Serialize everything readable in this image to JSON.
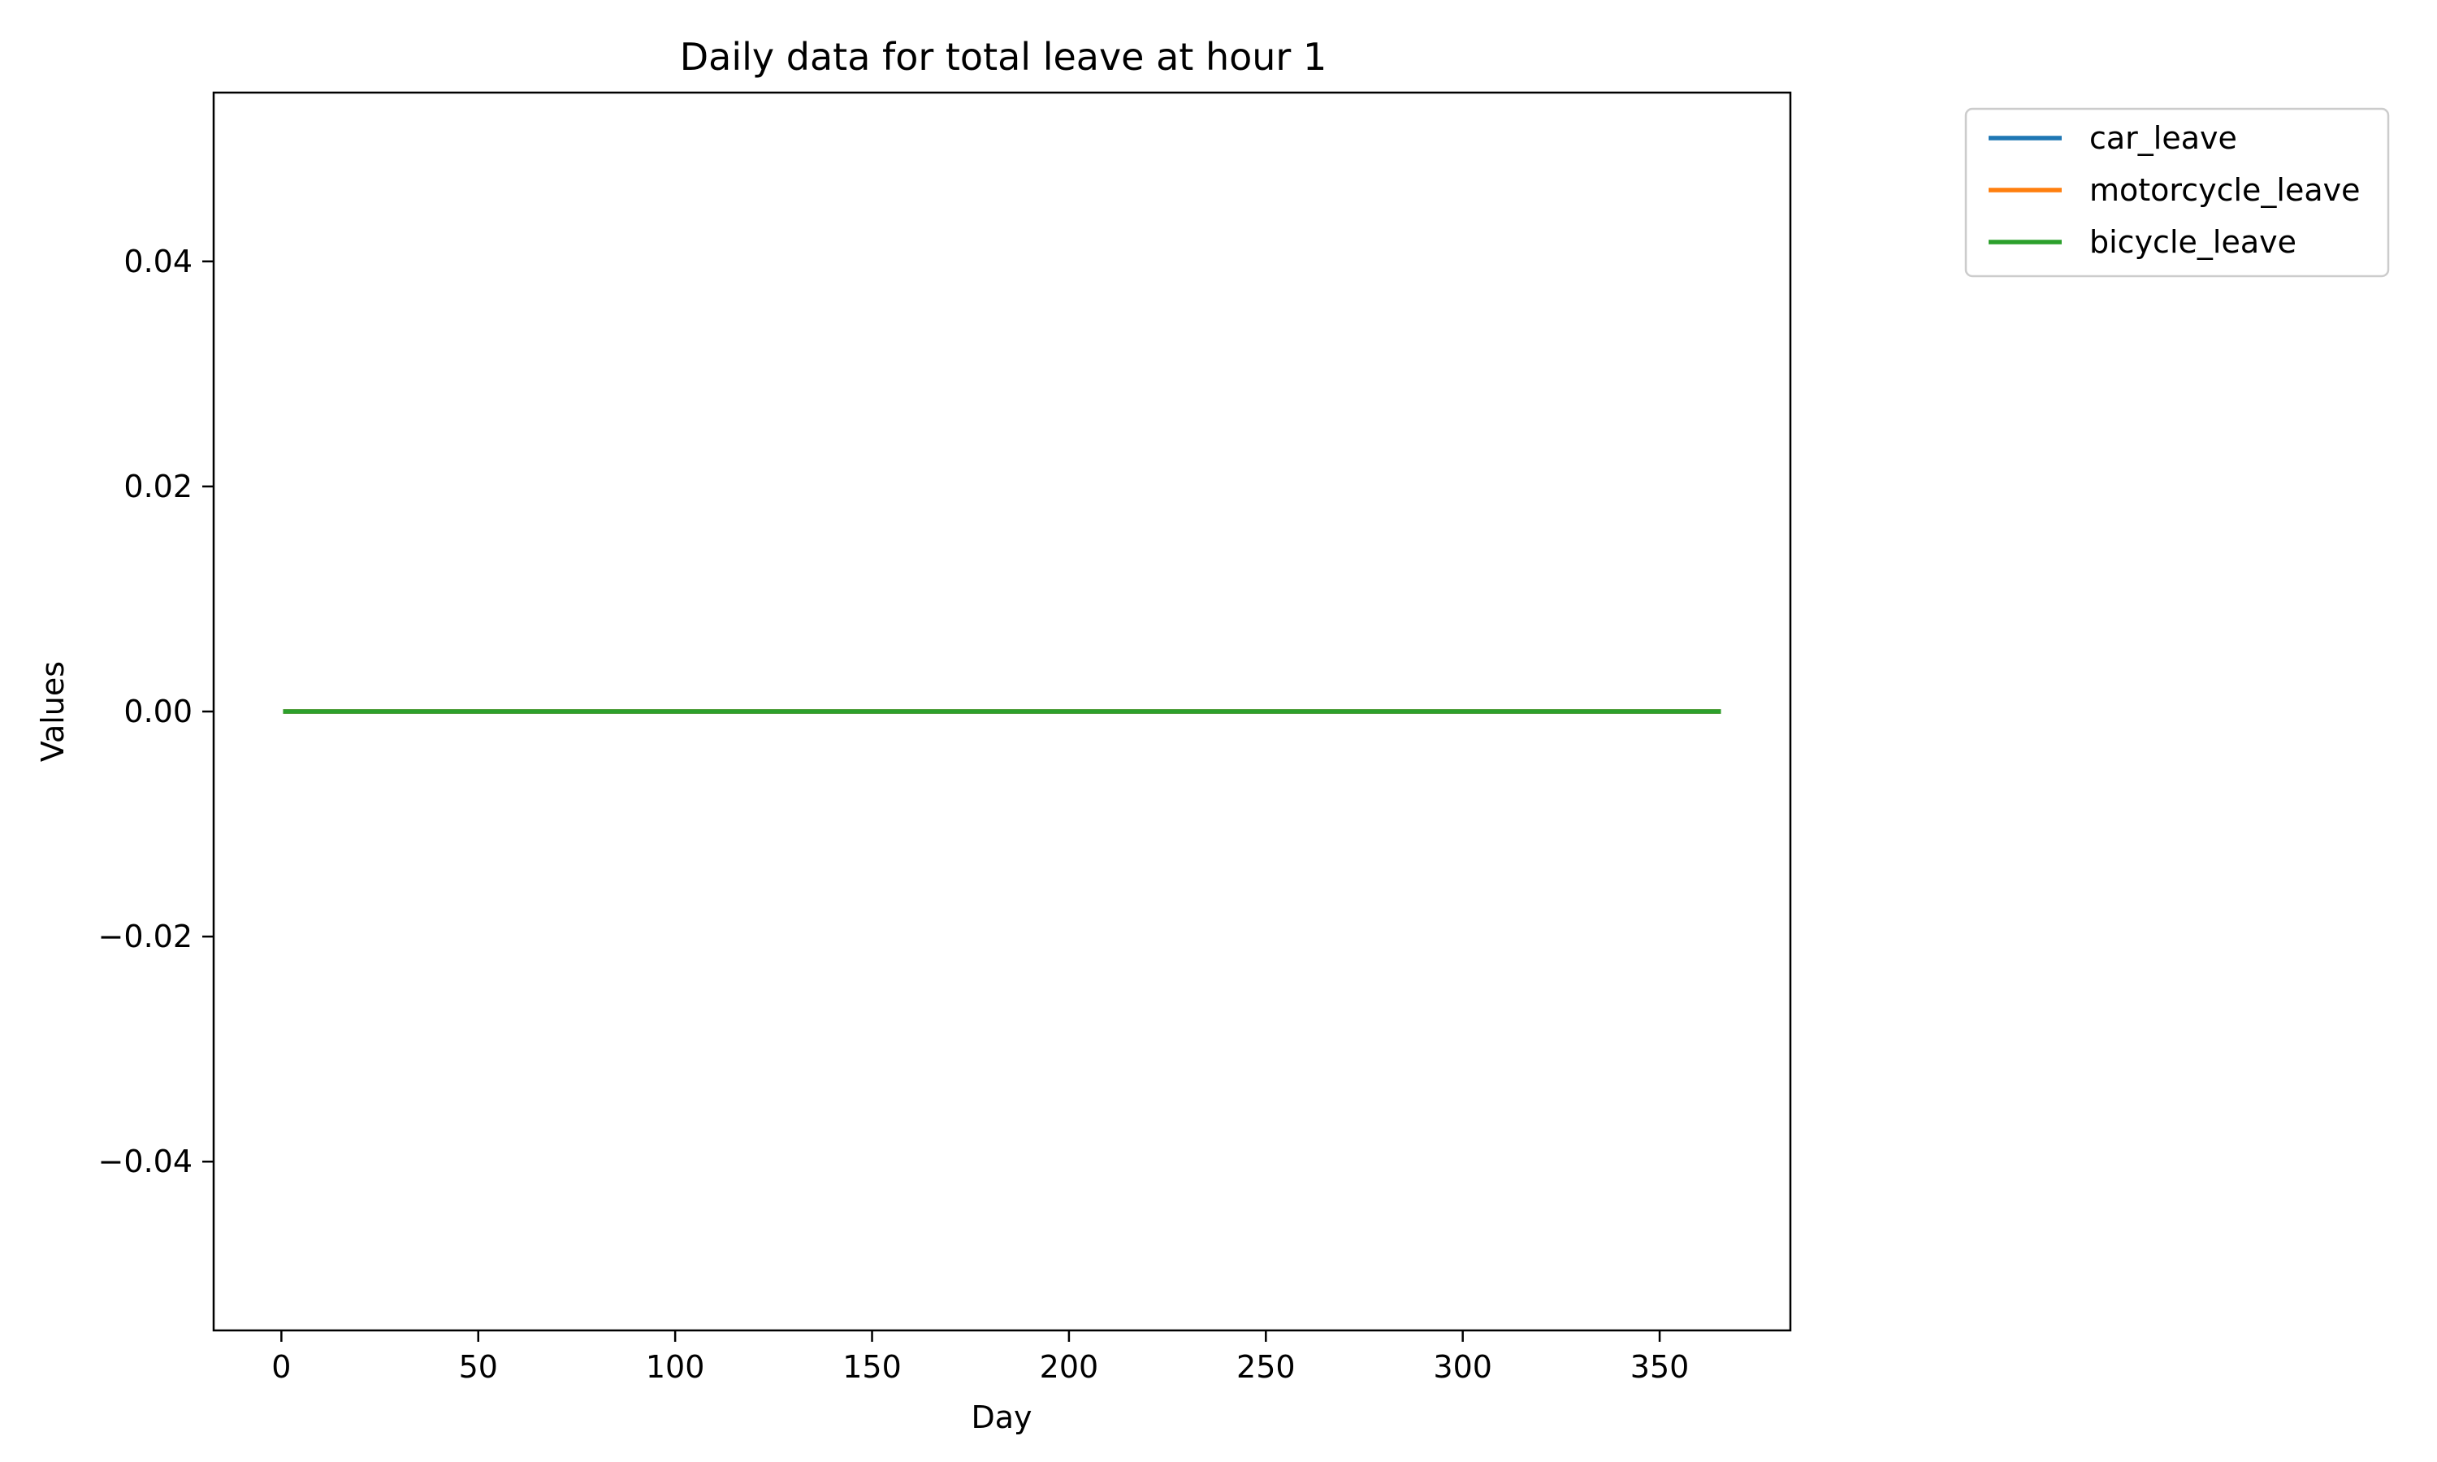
{
  "chart_data": {
    "type": "line",
    "title": "Daily data for total leave at hour 1",
    "xlabel": "Day",
    "ylabel": "Values",
    "xlim": [
      -17.2,
      383.2
    ],
    "ylim": [
      -0.055,
      0.055
    ],
    "x_ticks": [
      {
        "value": 0,
        "label": "0"
      },
      {
        "value": 50,
        "label": "50"
      },
      {
        "value": 100,
        "label": "100"
      },
      {
        "value": 150,
        "label": "150"
      },
      {
        "value": 200,
        "label": "200"
      },
      {
        "value": 250,
        "label": "250"
      },
      {
        "value": 300,
        "label": "300"
      },
      {
        "value": 350,
        "label": "350"
      }
    ],
    "y_ticks": [
      {
        "value": 0.04,
        "label": "0.04"
      },
      {
        "value": 0.02,
        "label": "0.02"
      },
      {
        "value": 0.0,
        "label": "0.00"
      },
      {
        "value": -0.02,
        "label": "−0.02"
      },
      {
        "value": -0.04,
        "label": "−0.04"
      }
    ],
    "x_range": [
      1,
      365
    ],
    "series": [
      {
        "name": "car_leave",
        "color": "#1f77b4",
        "constant_value": 0
      },
      {
        "name": "motorcycle_leave",
        "color": "#ff7f0e",
        "constant_value": 0
      },
      {
        "name": "bicycle_leave",
        "color": "#2ca02c",
        "constant_value": 0
      }
    ],
    "legend": {
      "placement": "outside-top-right"
    },
    "grid": false
  }
}
